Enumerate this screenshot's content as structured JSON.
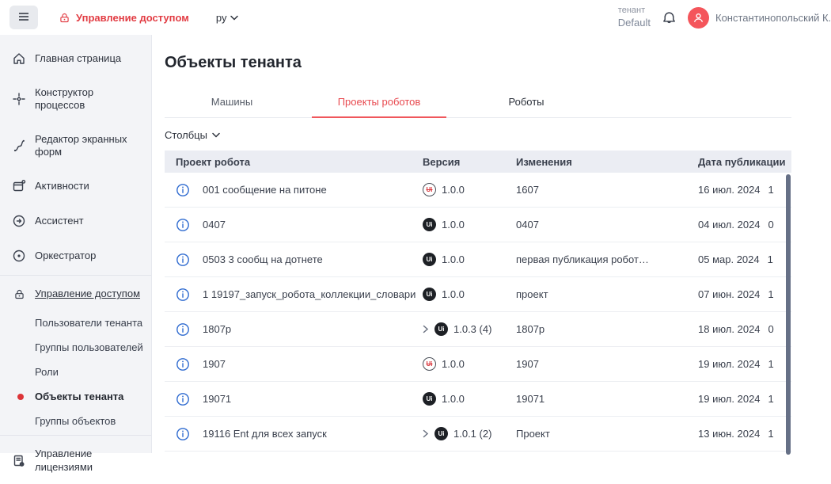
{
  "topbar": {
    "nav_label": "Управление доступом",
    "lang": "ру",
    "tenant_label": "тенант",
    "tenant_value": "Default",
    "user_name": "Константинопольский К."
  },
  "sidebar": {
    "items": [
      {
        "label": "Главная страница",
        "icon": "home-icon"
      },
      {
        "label": "Конструктор процессов",
        "icon": "process-icon"
      },
      {
        "label": "Редактор экранных форм",
        "icon": "form-editor-icon"
      },
      {
        "label": "Активности",
        "icon": "activities-icon"
      },
      {
        "label": "Ассистент",
        "icon": "assistant-icon"
      },
      {
        "label": "Оркестратор",
        "icon": "orchestrator-icon"
      }
    ],
    "access_section": {
      "label": "Управление доступом",
      "icon": "lock-icon",
      "children": [
        {
          "label": "Пользователи тенанта",
          "active": false
        },
        {
          "label": "Группы пользователей",
          "active": false
        },
        {
          "label": "Роли",
          "active": false
        },
        {
          "label": "Объекты тенанта",
          "active": true
        },
        {
          "label": "Группы объектов",
          "active": false
        }
      ]
    },
    "license_item": {
      "label": "Управление лицензиями",
      "icon": "license-icon"
    }
  },
  "main": {
    "title": "Объекты тенанта",
    "tabs": [
      {
        "label": "Машины",
        "active": false
      },
      {
        "label": "Проекты роботов",
        "active": true
      },
      {
        "label": "Роботы",
        "active": false
      }
    ],
    "columns_button": "Столбцы",
    "table": {
      "headers": [
        "Проект робота",
        "Версия",
        "Изменения",
        "Дата публикации"
      ],
      "rows": [
        {
          "name": "001 сообщение на питоне",
          "badge": "ui-crossed",
          "expandable": false,
          "version": "1.0.0",
          "changes": "1607",
          "date": "16 июл. 2024",
          "time_fragment": "1"
        },
        {
          "name": "0407",
          "badge": "ui",
          "expandable": false,
          "version": "1.0.0",
          "changes": "0407",
          "date": "04 июл. 2024",
          "time_fragment": "0"
        },
        {
          "name": "0503 3 сообщ на дотнете",
          "badge": "ui",
          "expandable": false,
          "version": "1.0.0",
          "changes": "первая публикация робот…",
          "date": "05 мар. 2024",
          "time_fragment": "1"
        },
        {
          "name": "1 19197_запуск_робота_коллекции_словари",
          "badge": "ui",
          "expandable": false,
          "version": "1.0.0",
          "changes": "проект",
          "date": "07 июн. 2024",
          "time_fragment": "1"
        },
        {
          "name": "1807p",
          "badge": "ui",
          "expandable": true,
          "version": "1.0.3 (4)",
          "changes": "1807p",
          "date": "18 июл. 2024",
          "time_fragment": "0"
        },
        {
          "name": "1907",
          "badge": "ui-crossed",
          "expandable": false,
          "version": "1.0.0",
          "changes": "1907",
          "date": "19 июл. 2024",
          "time_fragment": "1"
        },
        {
          "name": "19071",
          "badge": "ui",
          "expandable": false,
          "version": "1.0.0",
          "changes": "19071",
          "date": "19 июл. 2024",
          "time_fragment": "1"
        },
        {
          "name": "19116 Ent для всех запуск",
          "badge": "ui",
          "expandable": true,
          "version": "1.0.1 (2)",
          "changes": "Проект",
          "date": "13 июн. 2024",
          "time_fragment": "1"
        }
      ]
    }
  },
  "colors": {
    "accent_red": "#e23c43",
    "tab_active": "#e8494f",
    "avatar_bg": "#f4555b",
    "badge_dark": "#1d2025",
    "header_bg": "#ebedf3",
    "sidebar_bg": "#f3f4f7",
    "info_blue": "#2f6bd0",
    "scrollbar": "#667086"
  }
}
